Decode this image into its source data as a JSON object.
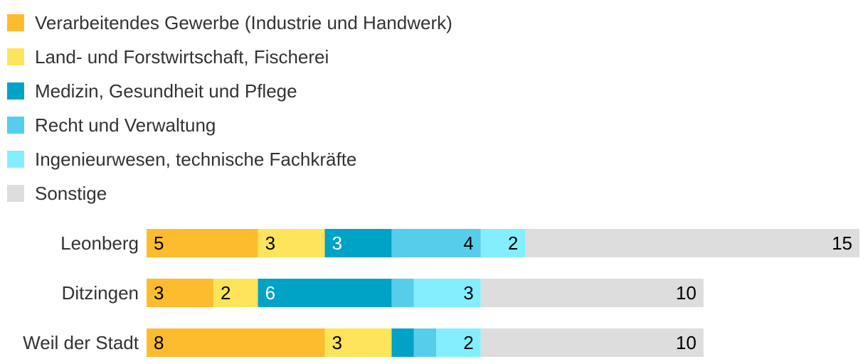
{
  "chart_data": {
    "type": "bar",
    "orientation": "horizontal",
    "stacked": true,
    "categories": [
      "Leonberg",
      "Ditzingen",
      "Weil der Stadt"
    ],
    "series": [
      {
        "name": "Verarbeitendes Gewerbe (Industrie und Handwerk)",
        "color": "#FDBC2E",
        "values": [
          5,
          3,
          8
        ],
        "label_color": "#000000"
      },
      {
        "name": "Land- und Forstwirtschaft, Fischerei",
        "color": "#FEE45A",
        "values": [
          3,
          2,
          3
        ],
        "label_color": "#000000"
      },
      {
        "name": "Medizin, Gesundheit und Pflege",
        "color": "#00A2C6",
        "values": [
          3,
          6,
          1
        ],
        "label_color": "#ffffff"
      },
      {
        "name": "Recht und Verwaltung",
        "color": "#57CDEC",
        "values": [
          4,
          1,
          1
        ],
        "label_color": "#000000"
      },
      {
        "name": "Ingenieurwesen, technische Fachkräfte",
        "color": "#84EEFF",
        "values": [
          2,
          3,
          2
        ],
        "label_color": "#000000"
      },
      {
        "name": "Sonstige",
        "color": "#DDDDDD",
        "values": [
          15,
          10,
          10
        ],
        "label_color": "#000000"
      }
    ],
    "data_labels": [
      [
        "5",
        "3",
        "3",
        "4",
        "2",
        "15"
      ],
      [
        "3",
        "2",
        "6",
        "",
        "3",
        "10"
      ],
      [
        "8",
        "3",
        "",
        "",
        "2",
        "10"
      ]
    ],
    "xlim": [
      0,
      32
    ],
    "legend_position": "top-left",
    "grid": false
  }
}
